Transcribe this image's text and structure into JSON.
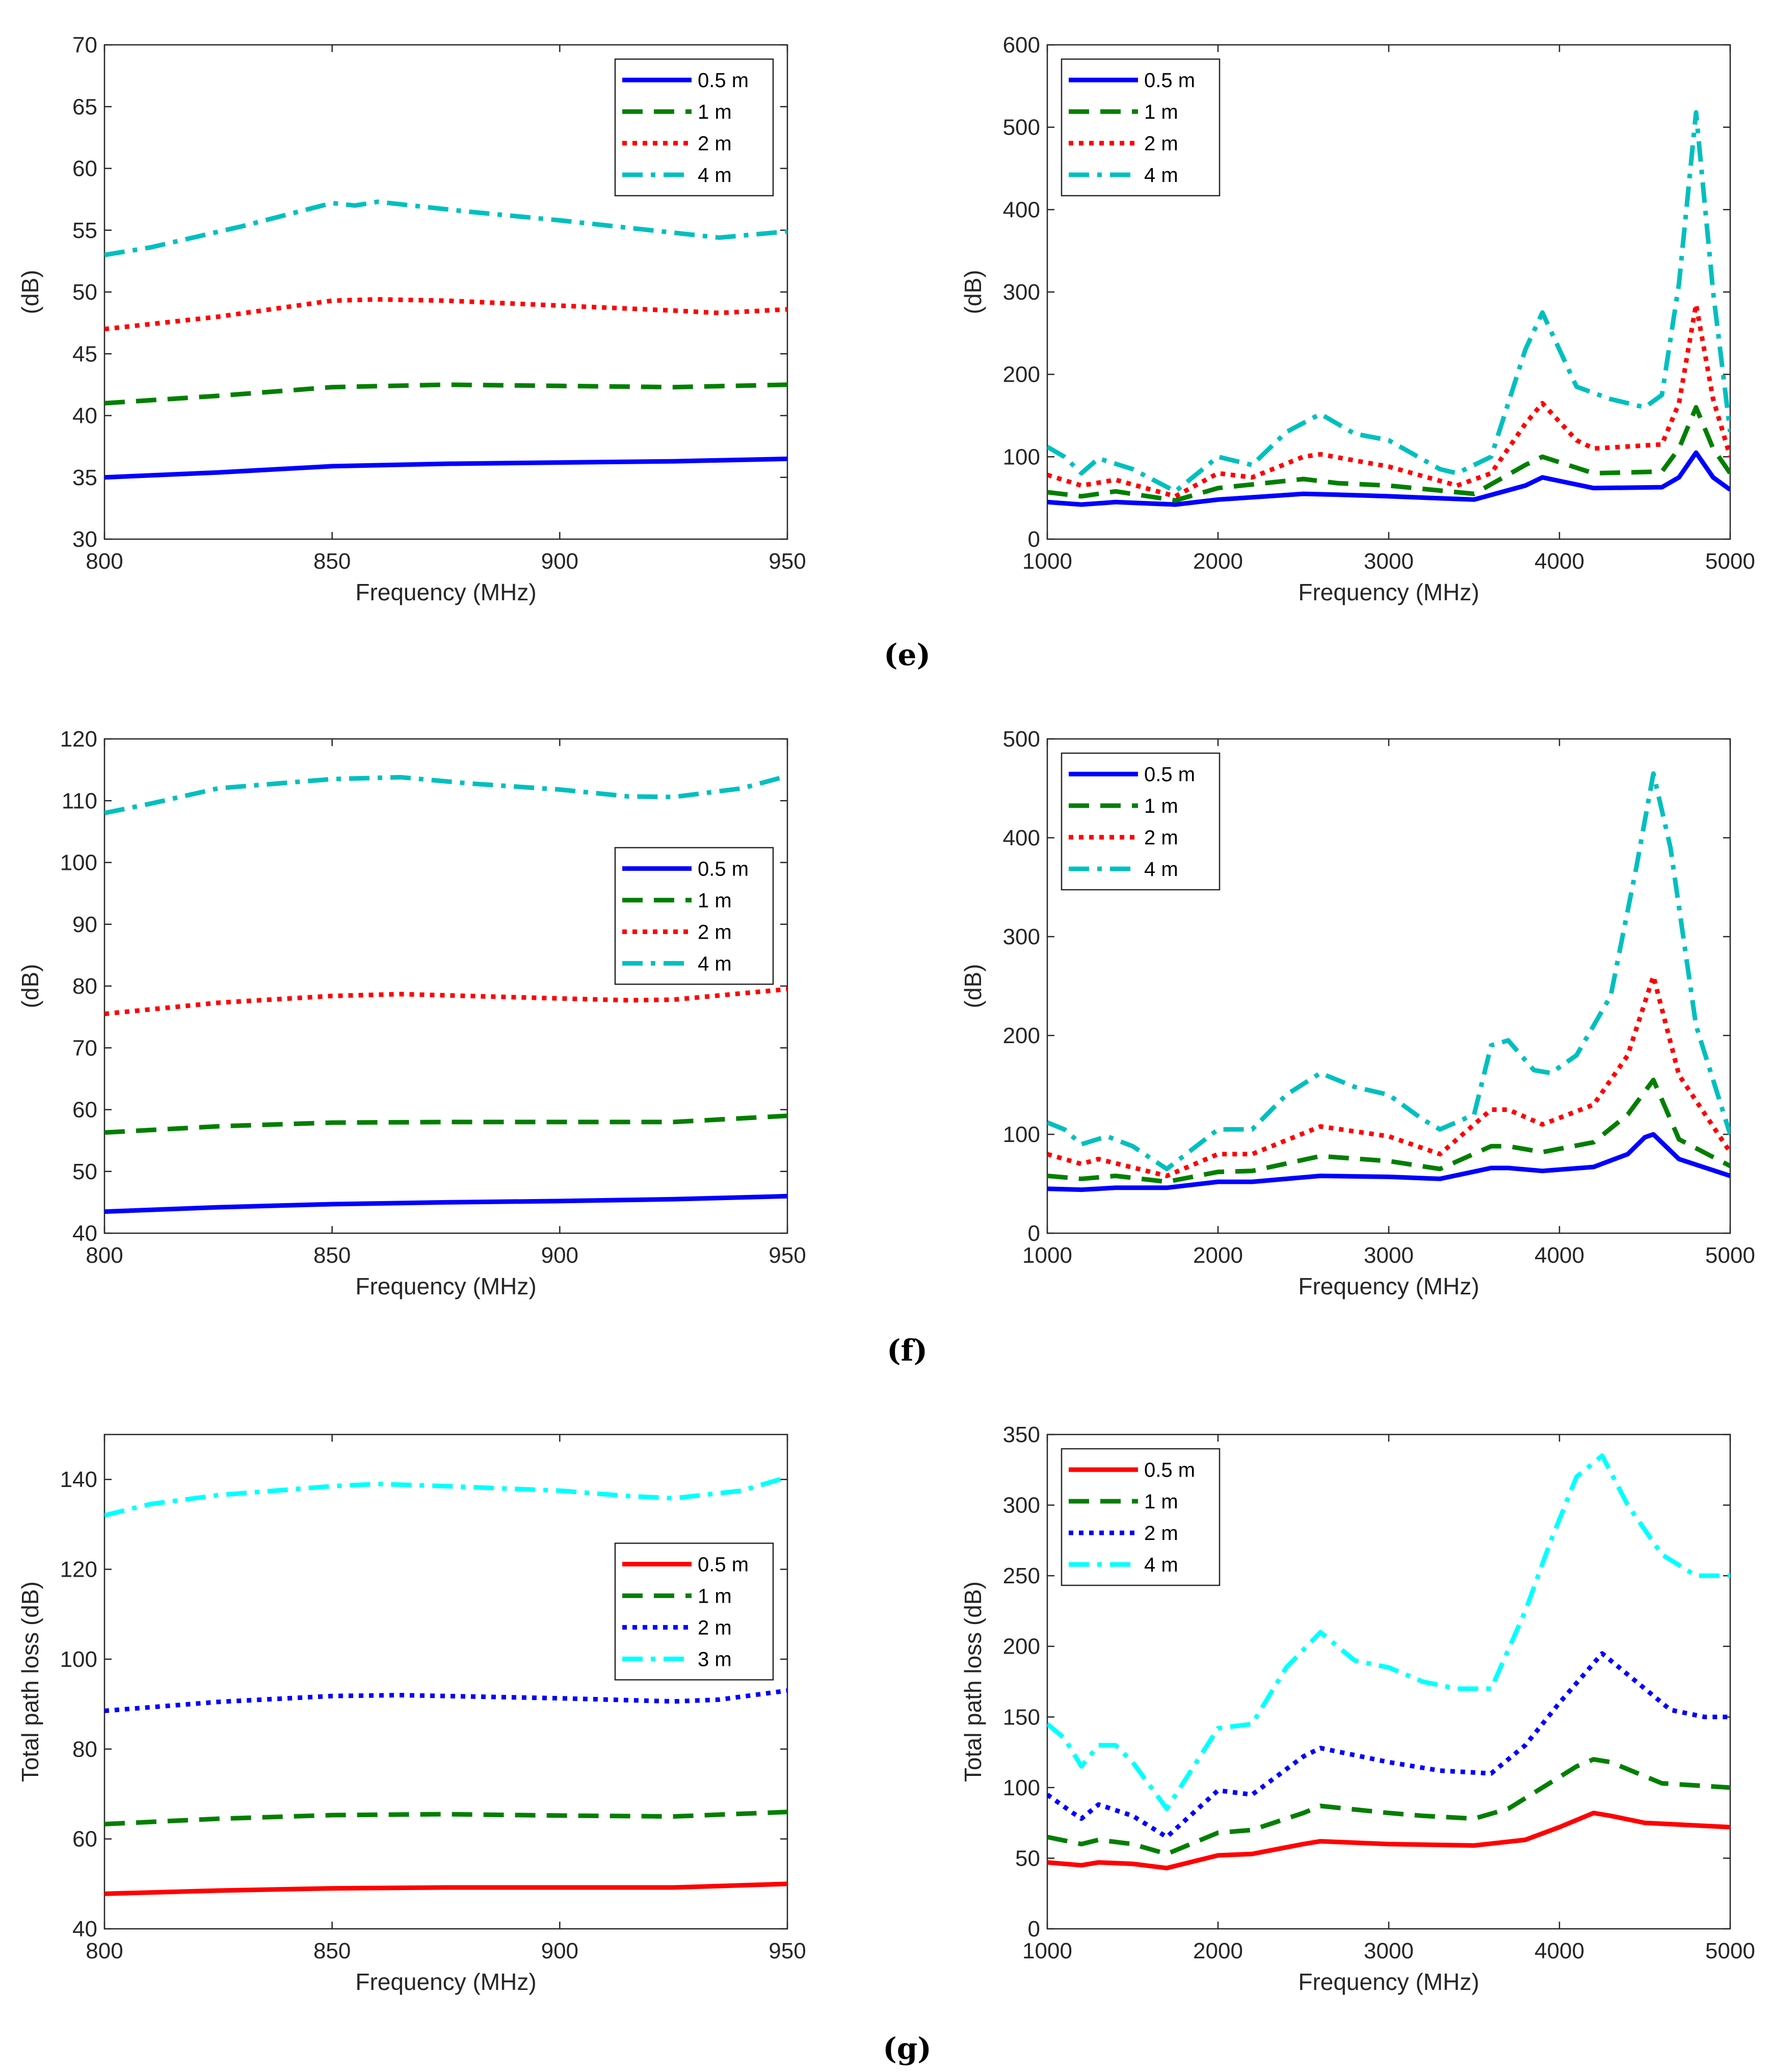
{
  "colors": {
    "blue": "#0000ff",
    "green": "#007f00",
    "red": "#ff0000",
    "teal": "#00bfbf",
    "cyan": "#00ffff"
  },
  "panel_labels": [
    "(e)",
    "(f)",
    "(g)"
  ],
  "chart_data": [
    {
      "id": "e-left",
      "type": "line",
      "xlabel": "Frequency (MHz)",
      "ylabel": "(dB)",
      "xlim": [
        800,
        950
      ],
      "ylim": [
        30,
        70
      ],
      "xticks": [
        800,
        850,
        900,
        950
      ],
      "yticks": [
        30,
        35,
        40,
        45,
        50,
        55,
        60,
        65,
        70
      ],
      "legend_position": "top-right",
      "series": [
        {
          "name": "0.5 m",
          "style": "solid",
          "color": "#0000ff",
          "x": [
            800,
            825,
            850,
            875,
            900,
            925,
            950
          ],
          "y": [
            35,
            35.4,
            35.9,
            36.1,
            36.2,
            36.3,
            36.5
          ]
        },
        {
          "name": "1 m",
          "style": "dash",
          "color": "#007f00",
          "x": [
            800,
            825,
            850,
            875,
            900,
            925,
            950
          ],
          "y": [
            41,
            41.6,
            42.3,
            42.5,
            42.4,
            42.3,
            42.5
          ]
        },
        {
          "name": "2 m",
          "style": "dot",
          "color": "#ff0000",
          "x": [
            800,
            825,
            850,
            860,
            875,
            900,
            925,
            935,
            950
          ],
          "y": [
            47,
            48,
            49.3,
            49.4,
            49.3,
            48.9,
            48.5,
            48.3,
            48.6
          ]
        },
        {
          "name": "4 m",
          "style": "dashdot",
          "color": "#00bfbf",
          "x": [
            800,
            810,
            830,
            850,
            855,
            860,
            880,
            900,
            920,
            935,
            950
          ],
          "y": [
            53,
            53.6,
            55.3,
            57.2,
            57,
            57.3,
            56.5,
            55.8,
            55,
            54.4,
            54.9
          ]
        }
      ]
    },
    {
      "id": "e-right",
      "type": "line",
      "xlabel": "Frequency (MHz)",
      "ylabel": "(dB)",
      "xlim": [
        1000,
        5000
      ],
      "ylim": [
        0,
        600
      ],
      "xticks": [
        1000,
        2000,
        3000,
        4000,
        5000
      ],
      "yticks": [
        0,
        100,
        200,
        300,
        400,
        500,
        600
      ],
      "legend_position": "top-left",
      "series": [
        {
          "name": "0.5 m",
          "style": "solid",
          "color": "#0000ff",
          "x": [
            1000,
            1200,
            1400,
            1750,
            2000,
            2500,
            2700,
            3000,
            3500,
            3800,
            3900,
            4200,
            4600,
            4700,
            4800,
            4900,
            5000
          ],
          "y": [
            45,
            42,
            45,
            42,
            48,
            55,
            54,
            52,
            48,
            65,
            75,
            62,
            63,
            75,
            105,
            75,
            60
          ]
        },
        {
          "name": "1 m",
          "style": "dash",
          "color": "#007f00",
          "x": [
            1000,
            1200,
            1400,
            1750,
            2000,
            2500,
            2700,
            3000,
            3500,
            3800,
            3900,
            4200,
            4600,
            4700,
            4800,
            4900,
            5000
          ],
          "y": [
            57,
            52,
            58,
            47,
            62,
            73,
            68,
            65,
            55,
            90,
            100,
            80,
            82,
            110,
            160,
            110,
            80
          ]
        },
        {
          "name": "2 m",
          "style": "dot",
          "color": "#ff0000",
          "x": [
            1000,
            1200,
            1400,
            1750,
            2000,
            2200,
            2500,
            2600,
            3000,
            3400,
            3600,
            3800,
            3900,
            4100,
            4200,
            4600,
            4700,
            4800,
            4900,
            5000
          ],
          "y": [
            78,
            65,
            72,
            52,
            80,
            75,
            100,
            103,
            88,
            65,
            80,
            140,
            165,
            120,
            110,
            115,
            165,
            285,
            170,
            100
          ]
        },
        {
          "name": "4 m",
          "style": "dashdot",
          "color": "#00bfbf",
          "x": [
            1000,
            1100,
            1200,
            1300,
            1500,
            1750,
            2000,
            2200,
            2400,
            2600,
            2800,
            3000,
            3300,
            3400,
            3600,
            3800,
            3900,
            4100,
            4300,
            4500,
            4600,
            4700,
            4800,
            4900,
            5000
          ],
          "y": [
            112,
            100,
            80,
            98,
            85,
            58,
            100,
            90,
            130,
            152,
            128,
            120,
            85,
            80,
            100,
            230,
            275,
            185,
            170,
            160,
            175,
            310,
            518,
            300,
            130
          ]
        }
      ]
    },
    {
      "id": "f-left",
      "type": "line",
      "xlabel": "Frequency (MHz)",
      "ylabel": "(dB)",
      "xlim": [
        800,
        950
      ],
      "ylim": [
        40,
        120
      ],
      "xticks": [
        800,
        850,
        900,
        950
      ],
      "yticks": [
        40,
        50,
        60,
        70,
        80,
        90,
        100,
        110,
        120
      ],
      "legend_position": "right",
      "series": [
        {
          "name": "0.5 m",
          "style": "solid",
          "color": "#0000ff",
          "x": [
            800,
            825,
            850,
            875,
            900,
            925,
            950
          ],
          "y": [
            43.5,
            44.2,
            44.7,
            45,
            45.2,
            45.5,
            46
          ]
        },
        {
          "name": "1 m",
          "style": "dash",
          "color": "#007f00",
          "x": [
            800,
            825,
            850,
            875,
            900,
            925,
            950
          ],
          "y": [
            56.3,
            57.3,
            57.9,
            58,
            58,
            58,
            59
          ]
        },
        {
          "name": "2 m",
          "style": "dot",
          "color": "#ff0000",
          "x": [
            800,
            825,
            850,
            865,
            875,
            900,
            915,
            925,
            950
          ],
          "y": [
            75.5,
            77.3,
            78.4,
            78.7,
            78.5,
            78,
            77.7,
            77.8,
            79.5
          ]
        },
        {
          "name": "4 m",
          "style": "dashdot",
          "color": "#00bfbf",
          "x": [
            800,
            810,
            825,
            850,
            865,
            880,
            900,
            915,
            925,
            940,
            950
          ],
          "y": [
            108,
            109.5,
            112,
            113.5,
            113.8,
            112.8,
            111.8,
            110.7,
            110.6,
            112,
            114
          ]
        }
      ]
    },
    {
      "id": "f-right",
      "type": "line",
      "xlabel": "Frequency (MHz)",
      "ylabel": "(dB)",
      "xlim": [
        1000,
        5000
      ],
      "ylim": [
        0,
        500
      ],
      "xticks": [
        1000,
        2000,
        3000,
        4000,
        5000
      ],
      "yticks": [
        0,
        100,
        200,
        300,
        400,
        500
      ],
      "legend_position": "top-left",
      "series": [
        {
          "name": "0.5 m",
          "style": "solid",
          "color": "#0000ff",
          "x": [
            1000,
            1200,
            1400,
            1700,
            2000,
            2200,
            2600,
            3000,
            3300,
            3600,
            3700,
            3900,
            4200,
            4400,
            4500,
            4550,
            4700,
            5000
          ],
          "y": [
            45,
            44,
            46,
            46,
            52,
            52,
            58,
            57,
            55,
            66,
            66,
            63,
            67,
            80,
            97,
            100,
            75,
            58
          ]
        },
        {
          "name": "1 m",
          "style": "dash",
          "color": "#007f00",
          "x": [
            1000,
            1200,
            1400,
            1700,
            2000,
            2200,
            2600,
            3000,
            3300,
            3600,
            3700,
            3900,
            4200,
            4400,
            4550,
            4700,
            5000
          ],
          "y": [
            58,
            55,
            58,
            52,
            62,
            63,
            78,
            73,
            65,
            88,
            88,
            82,
            92,
            120,
            155,
            95,
            68
          ]
        },
        {
          "name": "2 m",
          "style": "dot",
          "color": "#ff0000",
          "x": [
            1000,
            1200,
            1300,
            1700,
            2000,
            2200,
            2600,
            3000,
            3300,
            3600,
            3700,
            3900,
            4200,
            4400,
            4550,
            4700,
            5000
          ],
          "y": [
            80,
            70,
            75,
            58,
            80,
            80,
            108,
            98,
            80,
            125,
            125,
            110,
            130,
            180,
            260,
            160,
            82
          ]
        },
        {
          "name": "4 m",
          "style": "dashdot",
          "color": "#00bfbf",
          "x": [
            1000,
            1100,
            1200,
            1350,
            1500,
            1700,
            2000,
            2200,
            2400,
            2600,
            2800,
            3000,
            3200,
            3300,
            3500,
            3600,
            3700,
            3850,
            3950,
            4100,
            4300,
            4450,
            4550,
            4650,
            4800,
            5000
          ],
          "y": [
            112,
            105,
            90,
            98,
            88,
            65,
            105,
            105,
            140,
            162,
            148,
            140,
            115,
            105,
            120,
            190,
            195,
            165,
            162,
            180,
            240,
            370,
            465,
            390,
            210,
            100
          ]
        }
      ]
    },
    {
      "id": "g-left",
      "type": "line",
      "xlabel": "Frequency (MHz)",
      "ylabel": "Total path loss (dB)",
      "xlim": [
        800,
        950
      ],
      "ylim": [
        40,
        150
      ],
      "xticks": [
        800,
        850,
        900,
        950
      ],
      "yticks": [
        40,
        60,
        80,
        100,
        120,
        140
      ],
      "legend_position": "right",
      "series": [
        {
          "name": "0.5 m",
          "style": "solid",
          "color": "#ff0000",
          "x": [
            800,
            825,
            850,
            875,
            900,
            925,
            950
          ],
          "y": [
            47.8,
            48.5,
            49,
            49.2,
            49.2,
            49.2,
            50
          ]
        },
        {
          "name": "1 m",
          "style": "dash",
          "color": "#007f00",
          "x": [
            800,
            825,
            850,
            875,
            900,
            925,
            950
          ],
          "y": [
            63.3,
            64.5,
            65.3,
            65.5,
            65.2,
            65,
            66
          ]
        },
        {
          "name": "2 m",
          "style": "dot",
          "color": "#0000ff",
          "x": [
            800,
            825,
            850,
            865,
            875,
            900,
            925,
            935,
            950
          ],
          "y": [
            88.5,
            90.5,
            91.8,
            92,
            91.8,
            91.3,
            90.6,
            91,
            93
          ]
        },
        {
          "name": "3 m",
          "style": "dashdot",
          "color": "#00ffff",
          "x": [
            800,
            810,
            825,
            850,
            860,
            875,
            900,
            915,
            925,
            940,
            950
          ],
          "y": [
            132,
            134.5,
            136.5,
            138.5,
            139,
            138.5,
            137.5,
            136.3,
            135.8,
            137.5,
            140.5
          ]
        }
      ]
    },
    {
      "id": "g-right",
      "type": "line",
      "xlabel": "Frequency (MHz)",
      "ylabel": "Total path loss (dB)",
      "xlim": [
        1000,
        5000
      ],
      "ylim": [
        0,
        350
      ],
      "xticks": [
        1000,
        2000,
        3000,
        4000,
        5000
      ],
      "yticks": [
        0,
        50,
        100,
        150,
        200,
        250,
        300,
        350
      ],
      "legend_position": "top-left",
      "series": [
        {
          "name": "0.5 m",
          "style": "solid",
          "color": "#ff0000",
          "x": [
            1000,
            1200,
            1300,
            1500,
            1700,
            2000,
            2200,
            2500,
            2600,
            3000,
            3500,
            3800,
            4000,
            4200,
            4300,
            4500,
            5000
          ],
          "y": [
            47,
            45,
            47,
            46,
            43,
            52,
            53,
            60,
            62,
            60,
            59,
            63,
            72,
            82,
            80,
            75,
            72
          ]
        },
        {
          "name": "1 m",
          "style": "dash",
          "color": "#007f00",
          "x": [
            1000,
            1200,
            1300,
            1500,
            1700,
            2000,
            2200,
            2500,
            2600,
            3000,
            3200,
            3500,
            3700,
            3900,
            4100,
            4200,
            4300,
            4600,
            5000
          ],
          "y": [
            65,
            60,
            63,
            60,
            53,
            68,
            70,
            82,
            87,
            82,
            80,
            78,
            85,
            100,
            115,
            120,
            118,
            103,
            100
          ]
        },
        {
          "name": "2 m",
          "style": "dot",
          "color": "#0000ff",
          "x": [
            1000,
            1150,
            1200,
            1300,
            1500,
            1700,
            2000,
            2200,
            2500,
            2600,
            3000,
            3300,
            3600,
            3800,
            4000,
            4250,
            4400,
            4650,
            4850,
            5000
          ],
          "y": [
            95,
            82,
            78,
            88,
            80,
            65,
            98,
            95,
            122,
            128,
            118,
            112,
            110,
            130,
            160,
            195,
            180,
            155,
            150,
            150
          ]
        },
        {
          "name": "4 m",
          "style": "dashdot",
          "color": "#00ffff",
          "x": [
            1000,
            1100,
            1200,
            1300,
            1400,
            1500,
            1700,
            2000,
            2200,
            2400,
            2600,
            2800,
            3000,
            3200,
            3400,
            3600,
            3800,
            3950,
            4100,
            4250,
            4400,
            4600,
            4800,
            5000
          ],
          "y": [
            145,
            135,
            115,
            130,
            130,
            118,
            85,
            142,
            145,
            185,
            210,
            190,
            185,
            175,
            170,
            170,
            225,
            275,
            320,
            335,
            300,
            265,
            250,
            250
          ]
        }
      ]
    }
  ]
}
